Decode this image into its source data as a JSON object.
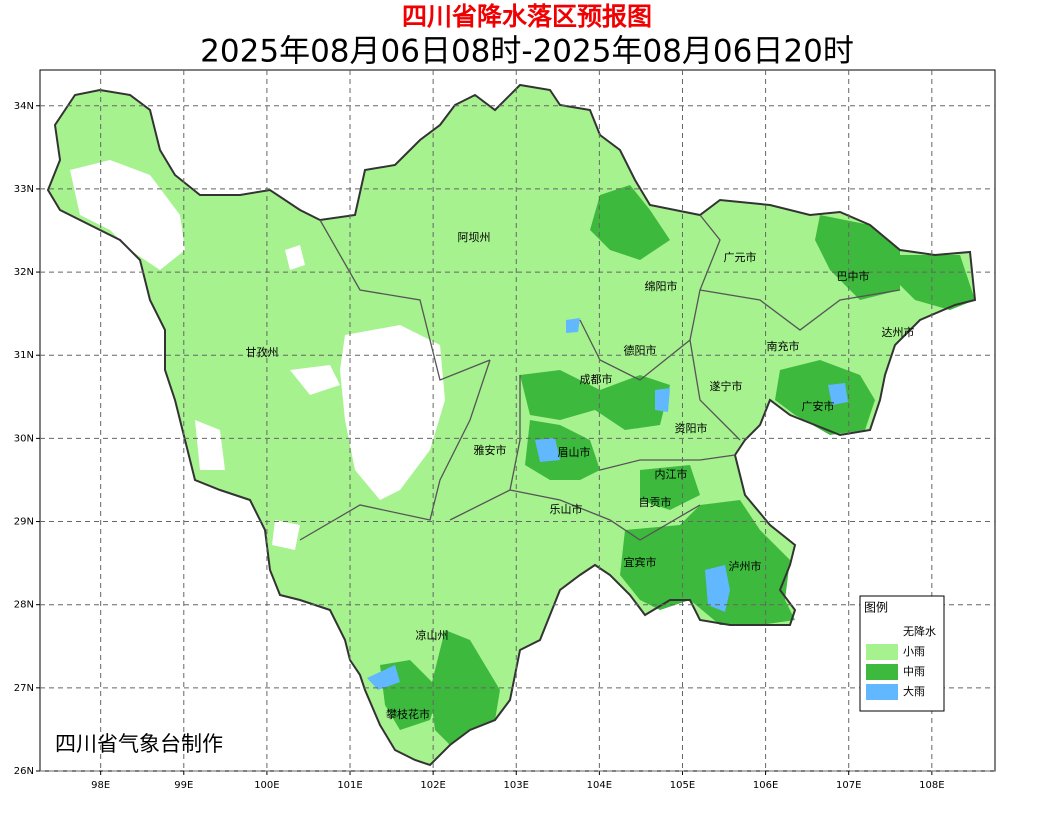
{
  "header": {
    "title": "四川省降水落区预报图",
    "subtitle": "2025年08月06日08时-2025年08月06日20时"
  },
  "map": {
    "xlim": [
      97.27,
      108.76
    ],
    "ylim": [
      26,
      34.43
    ],
    "grid": true,
    "xticks": [
      {
        "value": 98,
        "label": "98E"
      },
      {
        "value": 99,
        "label": "99E"
      },
      {
        "value": 100,
        "label": "100E"
      },
      {
        "value": 101,
        "label": "101E"
      },
      {
        "value": 102,
        "label": "102E"
      },
      {
        "value": 103,
        "label": "103E"
      },
      {
        "value": 104,
        "label": "104E"
      },
      {
        "value": 105,
        "label": "105E"
      },
      {
        "value": 106,
        "label": "106E"
      },
      {
        "value": 107,
        "label": "107E"
      },
      {
        "value": 108,
        "label": "108E"
      }
    ],
    "yticks": [
      {
        "value": 26,
        "label": "26N"
      },
      {
        "value": 27,
        "label": "27N"
      },
      {
        "value": 28,
        "label": "28N"
      },
      {
        "value": 29,
        "label": "29N"
      },
      {
        "value": 30,
        "label": "30N"
      },
      {
        "value": 31,
        "label": "31N"
      },
      {
        "value": 32,
        "label": "32N"
      },
      {
        "value": 33,
        "label": "33N"
      },
      {
        "value": 34,
        "label": "34N"
      }
    ],
    "places": [
      "阿坝州",
      "广元市",
      "巴中市",
      "绵阳市",
      "达州市",
      "甘孜州",
      "德阳市",
      "南充市",
      "成都市",
      "遂宁市",
      "广安市",
      "资阳市",
      "雅安市",
      "眉山市",
      "内江市",
      "自贡市",
      "乐山市",
      "宜宾市",
      "泸州市",
      "凉山州",
      "攀枝花市"
    ]
  },
  "legend": {
    "title": "图例",
    "items": [
      {
        "label": "无降水",
        "color": "#ffffff"
      },
      {
        "label": "小雨",
        "color": "#a6f28f"
      },
      {
        "label": "中雨",
        "color": "#3db93d"
      },
      {
        "label": "大雨",
        "color": "#61b8ff"
      }
    ]
  },
  "credit": "四川省气象台制作"
}
